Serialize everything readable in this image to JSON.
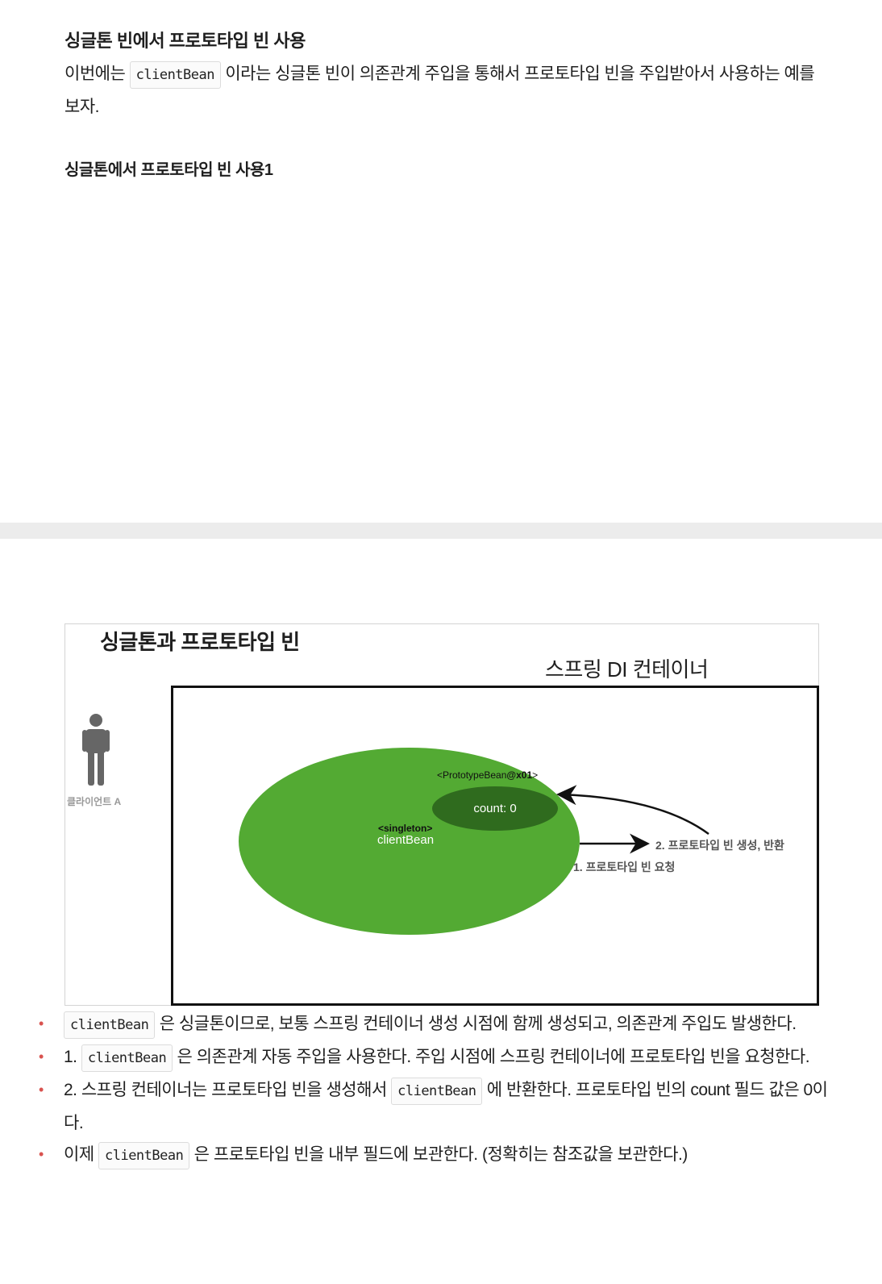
{
  "section": {
    "heading": "싱글톤 빈에서 프로토타입 빈 사용",
    "paragraph": {
      "before": "이번에는 ",
      "code": "clientBean",
      "after": " 이라는 싱글톤 빈이 의존관계 주입을 통해서 프로토타입 빈을 주입받아서 사용하는 예를 보자."
    },
    "subheading": "싱글톤에서 프로토타입 빈 사용1"
  },
  "diagram": {
    "title": "싱글톤과 프로토타입 빈",
    "container_label": "스프링 DI 컨테이너",
    "client_label": "클라이언트 A",
    "singleton_tag": "<singleton>",
    "singleton_name": "clientBean",
    "prototype_prefix": "<PrototypeBean",
    "prototype_id": "@x01",
    "prototype_suffix": ">",
    "count_text": "count: 0",
    "step1": "1. 프로토타입 빈 요청",
    "step2": "2. 프로토타입 빈 생성, 반환",
    "colors": {
      "singleton": "#53aa33",
      "prototype": "#2f6b1e",
      "bullet": "#d9534f"
    },
    "icons": [
      "person-icon",
      "arrow-right-icon",
      "curved-arrow-icon"
    ]
  },
  "bullets": [
    {
      "prefix": "",
      "code": "clientBean",
      "text": " 은 싱글톤이므로, 보통 스프링 컨테이너 생성 시점에 함께 생성되고, 의존관계 주입도 발생한다."
    },
    {
      "prefix": "1. ",
      "code": "clientBean",
      "text": " 은 의존관계 자동 주입을 사용한다. 주입 시점에 스프링 컨테이너에 프로토타입 빈을 요청한다."
    },
    {
      "prefix": "2. 스프링 컨테이너는 프로토타입 빈을 생성해서 ",
      "code": "clientBean",
      "text": " 에 반환한다. 프로토타입 빈의 count 필드 값은 0이다."
    },
    {
      "prefix": "이제 ",
      "code": "clientBean",
      "text": " 은 프로토타입 빈을 내부 필드에 보관한다. (정확히는 참조값을 보관한다.)"
    }
  ]
}
